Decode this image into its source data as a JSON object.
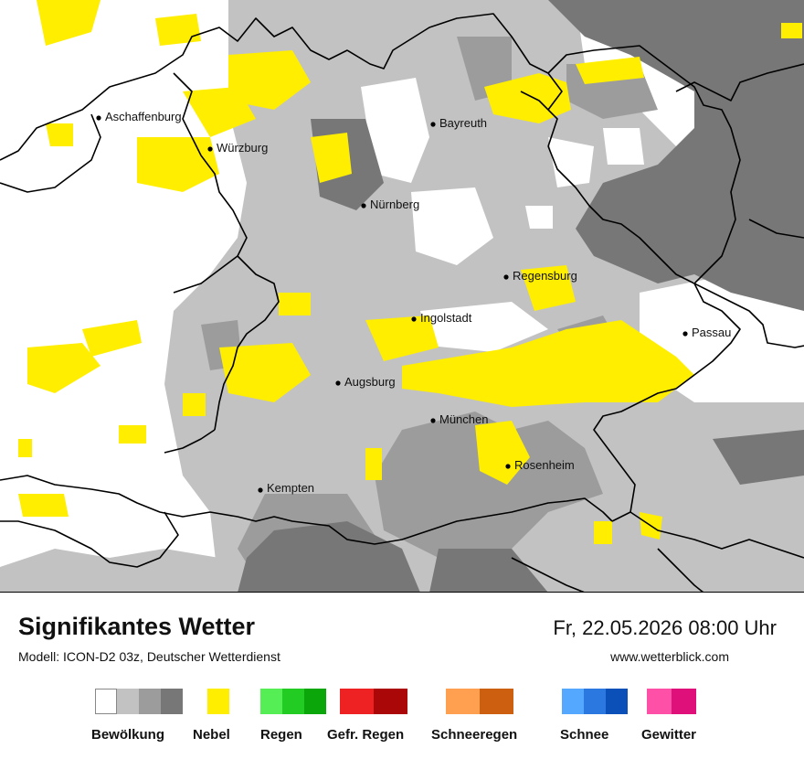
{
  "map": {
    "cities": [
      {
        "name": "Aschaffenburg"
      },
      {
        "name": "Würzburg"
      },
      {
        "name": "Bayreuth"
      },
      {
        "name": "Nürnberg"
      },
      {
        "name": "Regensburg"
      },
      {
        "name": "Ingolstadt"
      },
      {
        "name": "Passau"
      },
      {
        "name": "Augsburg"
      },
      {
        "name": "München"
      },
      {
        "name": "Rosenheim"
      },
      {
        "name": "Kempten"
      }
    ]
  },
  "footer": {
    "title": "Signifikantes Wetter",
    "model": "Modell: ICON-D2 03z, Deutscher Wetterdienst",
    "datetime": "Fr, 22.05.2026 08:00 Uhr",
    "website": "www.wetterblick.com"
  },
  "legend": [
    {
      "label": "Bewölkung",
      "colors": [
        "#ffffff",
        "#c2c2c2",
        "#9c9c9c",
        "#777777"
      ]
    },
    {
      "label": "Nebel",
      "colors": [
        "#ffee00"
      ]
    },
    {
      "label": "Regen",
      "colors": [
        "#55ee55",
        "#22cc22",
        "#0aa60a"
      ]
    },
    {
      "label": "Gefr. Regen",
      "colors": [
        "#ee2222",
        "#aa0808"
      ]
    },
    {
      "label": "Schneeregen",
      "colors": [
        "#ffa050",
        "#cc6010"
      ]
    },
    {
      "label": "Schnee",
      "colors": [
        "#55a8ff",
        "#2a78e0",
        "#0a50b8"
      ]
    },
    {
      "label": "Gewitter",
      "colors": [
        "#ff50a8",
        "#e0107a"
      ]
    }
  ]
}
